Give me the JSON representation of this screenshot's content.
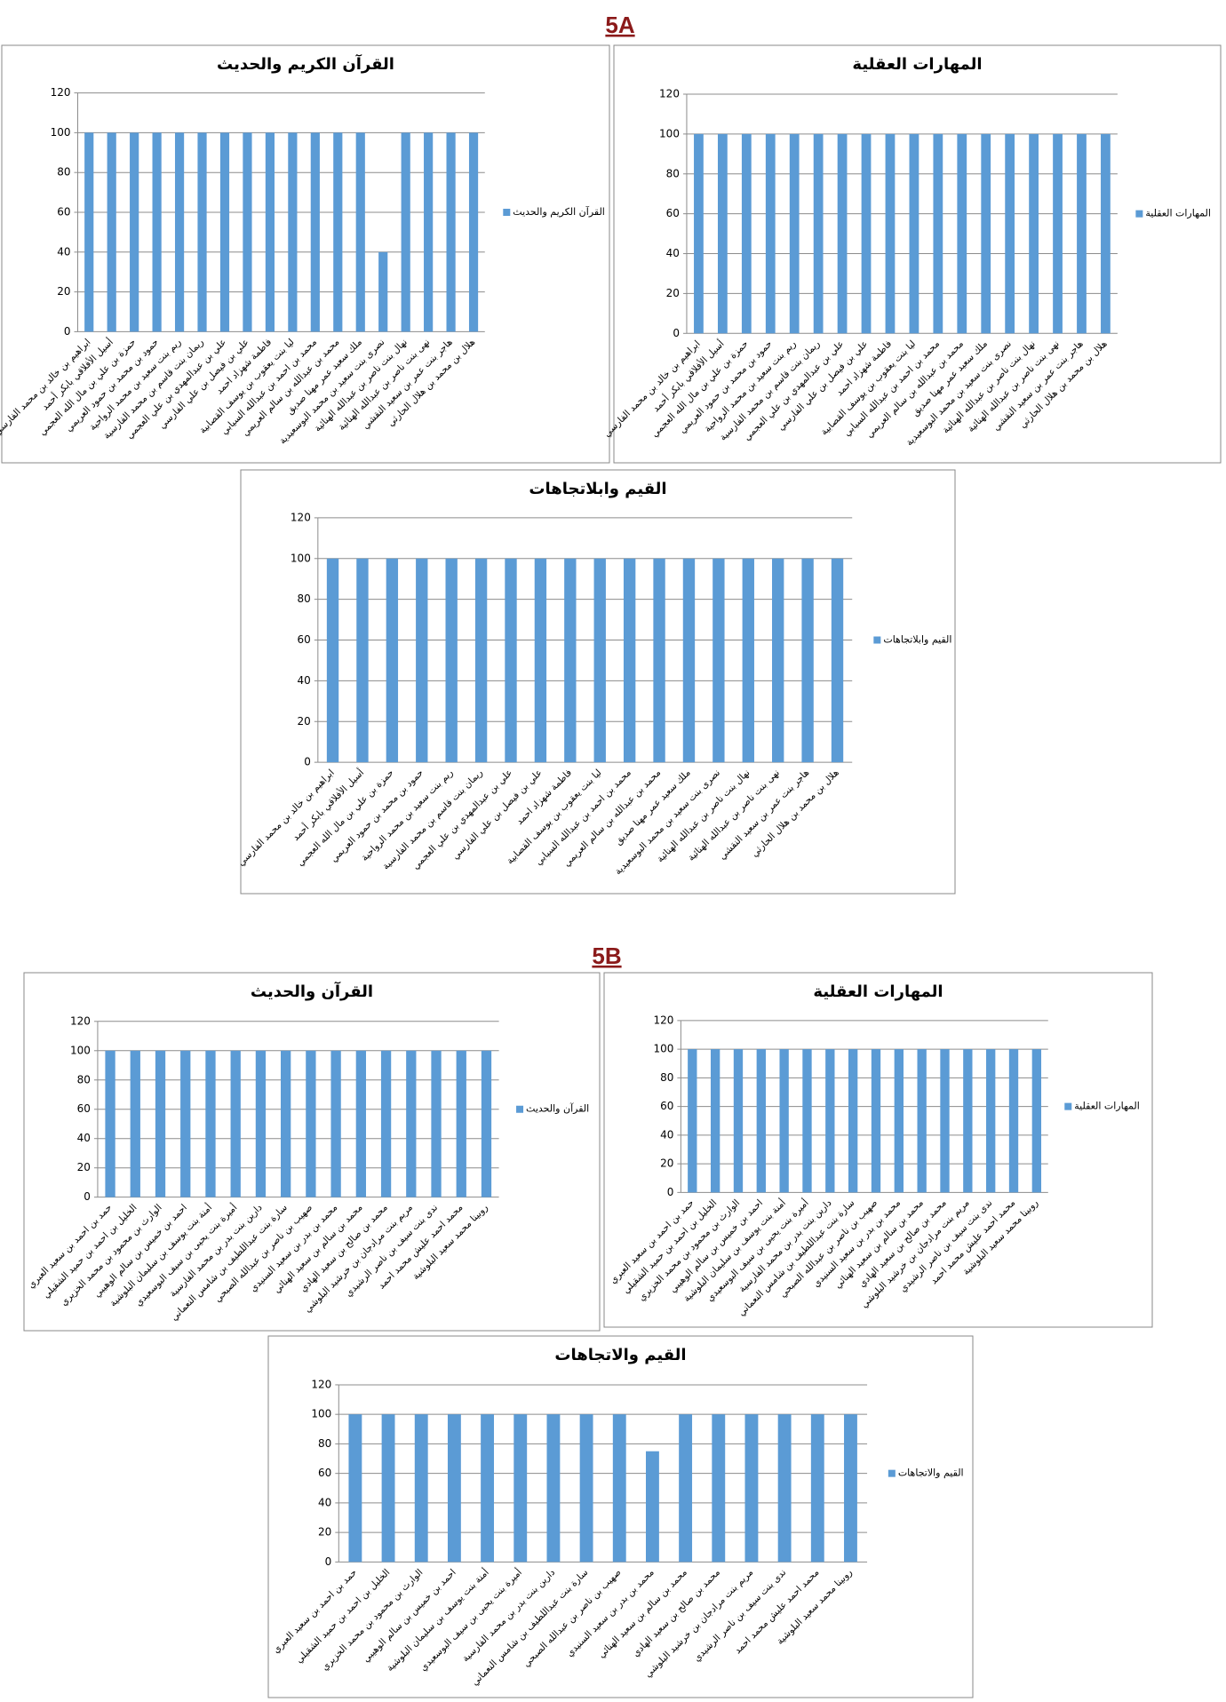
{
  "headings": [
    "5A",
    "5B"
  ],
  "chart_data": [
    {
      "type": "bar",
      "title": "القرآن الكريم والحديث",
      "categories": [
        "ابراهيم بن خالد بن محمد الفارسي",
        "أسيل الأفلاقي بابكر أحمد",
        "حمزة بن علي بن مال الله العجمي",
        "حمود بن محمد بن حمود العريمي",
        "ريم بنت سعيد بن محمد الرواحية",
        "ريمان بنت قاسم بن محمد الفارسية",
        "علي بن عبدالمهدي بن علي العجمي",
        "علي بن فيصل بن علي الفارسي",
        "فاطمة شهزاد احمد",
        "ليا بنت يعقوب بن يوسف القصابية",
        "محمد بن احمد بن عبدالله السيابي",
        "محمد بن عبدالله بن سالم العريمي",
        "ملك سعيد عمر مهنا صديق",
        "نصرى بنت سعيد بن محمد البوسعيدية",
        "نهال بنت ناصر بن عبدالله الهنائية",
        "نهى بنت ناصر بن عبدالله الهنائية",
        "هاجر بنت عمر بن سعيد النقشي",
        "هلال بن محمد بن هلال الحارثي"
      ],
      "series": [
        {
          "name": "القرآن الكريم والحديث",
          "color": "#5b9bd5",
          "values": [
            100,
            100,
            100,
            100,
            100,
            100,
            100,
            100,
            100,
            100,
            100,
            100,
            100,
            40,
            100,
            100,
            100,
            100
          ]
        }
      ],
      "ylim": [
        0,
        120
      ],
      "yticks": [
        0,
        20,
        40,
        60,
        80,
        100,
        120
      ],
      "grid": true,
      "legend": "right"
    },
    {
      "type": "bar",
      "title": "المهارات العقلية",
      "categories": [
        "ابراهيم بن خالد بن محمد الفارسي",
        "أسيل الأفلاقي بابكر أحمد",
        "حمزة بن علي بن مال الله العجمي",
        "حمود بن محمد بن حمود العريمي",
        "ريم بنت سعيد بن محمد الرواحية",
        "ريمان بنت قاسم بن محمد الفارسية",
        "علي بن عبدالمهدي بن علي العجمي",
        "علي بن فيصل بن علي الفارسي",
        "فاطمة شهزاد احمد",
        "ليا بنت يعقوب بن يوسف القصابية",
        "محمد بن احمد بن عبدالله السيابي",
        "محمد بن عبدالله بن سالم العريمي",
        "ملك سعيد عمر مهنا صديق",
        "نصرى بنت سعيد بن محمد البوسعيدية",
        "نهال بنت ناصر بن عبدالله الهنائية",
        "نهى بنت ناصر بن عبدالله الهنائية",
        "هاجر بنت عمر بن سعيد النقشي",
        "هلال بن محمد بن هلال الحارثي"
      ],
      "series": [
        {
          "name": "المهارات العقلية",
          "color": "#5b9bd5",
          "values": [
            100,
            100,
            100,
            100,
            100,
            100,
            100,
            100,
            100,
            100,
            100,
            100,
            100,
            100,
            100,
            100,
            100,
            100
          ]
        }
      ],
      "ylim": [
        0,
        120
      ],
      "yticks": [
        0,
        20,
        40,
        60,
        80,
        100,
        120
      ],
      "grid": true,
      "legend": "right"
    },
    {
      "type": "bar",
      "title": "القيم وابلاتجاهات",
      "categories": [
        "ابراهيم بن خالد بن محمد الفارسي",
        "أسيل الأفلاقي بابكر أحمد",
        "حمزة بن علي بن مال الله العجمي",
        "حمود بن محمد بن حمود العريمي",
        "ريم بنت سعيد بن محمد الرواحية",
        "ريمان بنت قاسم بن محمد الفارسية",
        "علي بن عبدالمهدي بن علي العجمي",
        "علي بن فيصل بن علي الفارسي",
        "فاطمة شهزاد احمد",
        "ليا بنت يعقوب بن يوسف القصابية",
        "محمد بن احمد بن عبدالله السيابي",
        "محمد بن عبدالله بن سالم العريمي",
        "ملك سعيد عمر مهنا صديق",
        "نصرى بنت سعيد بن محمد البوسعيدية",
        "نهال بنت ناصر بن عبدالله الهنائية",
        "نهى بنت ناصر بن عبدالله الهنائية",
        "هاجر بنت عمر بن سعيد النقشي",
        "هلال بن محمد بن هلال الحارثي"
      ],
      "series": [
        {
          "name": "القيم وابلاتجاهات",
          "color": "#5b9bd5",
          "values": [
            100,
            100,
            100,
            100,
            100,
            100,
            100,
            100,
            100,
            100,
            100,
            100,
            100,
            100,
            100,
            100,
            100,
            100
          ]
        }
      ],
      "ylim": [
        0,
        120
      ],
      "yticks": [
        0,
        20,
        40,
        60,
        80,
        100,
        120
      ],
      "grid": true,
      "legend": "right"
    },
    {
      "type": "bar",
      "title": "القرآن والحديث",
      "categories": [
        "حمد بن احمد بن سعيد العبري",
        "الخليل بن احمد بن حميد الشقيلي",
        "الوارث بن محمود بن محمد الخزيري",
        "احمد بن خميس بن سالم الوهيبي",
        "أمنة بنت يوسف بن سليمان البلوشية",
        "أميرة بنت يحيى بن سيف البوسعيدي",
        "دارين بنت بدر بن محمد الفارسية",
        "سارة بنت عبداللطيف بن شامس النعماني",
        "صهيب بن ناصر بن عبدالله الصبحي",
        "محمد بن بدر بن سعيد السنيدي",
        "محمد بن سالم بن سعيد الهنائي",
        "محمد بن صالح بن سعيد الهادي",
        "مريم بنت مرادجان بن خرشيد البلوشي",
        "ندى بنت سيف بن ناصر الرشيدي",
        "محمد احمد عليش محمد احمد",
        "روبينا محمد سعيد البلوشية"
      ],
      "series": [
        {
          "name": "القرآن والحديث",
          "color": "#5b9bd5",
          "values": [
            100,
            100,
            100,
            100,
            100,
            100,
            100,
            100,
            100,
            100,
            100,
            100,
            100,
            100,
            100,
            100
          ]
        }
      ],
      "ylim": [
        0,
        120
      ],
      "yticks": [
        0,
        20,
        40,
        60,
        80,
        100,
        120
      ],
      "grid": true,
      "legend": "right"
    },
    {
      "type": "bar",
      "title": "المهارات العقلية",
      "categories": [
        "حمد بن احمد بن سعيد العبري",
        "الخليل بن احمد بن حميد الشقيلي",
        "الوارث بن محمود بن محمد الخزيري",
        "احمد بن خميس بن سالم الوهيبي",
        "أمنة بنت يوسف بن سليمان البلوشية",
        "أميرة بنت يحيى بن سيف البوسعيدي",
        "دارين بنت بدر بن محمد الفارسية",
        "سارة بنت عبداللطيف بن شامس النعماني",
        "صهيب بن ناصر بن عبدالله الصبحي",
        "محمد بن بدر بن سعيد السنيدي",
        "محمد بن سالم بن سعيد الهنائي",
        "محمد بن صالح بن سعيد الهادي",
        "مريم بنت مرادجان بن خرشيد البلوشي",
        "ندى بنت سيف بن ناصر الرشيدي",
        "محمد احمد عليش محمد احمد",
        "روبينا محمد سعيد البلوشية"
      ],
      "series": [
        {
          "name": "المهارات العقلية",
          "color": "#5b9bd5",
          "values": [
            100,
            100,
            100,
            100,
            100,
            100,
            100,
            100,
            100,
            100,
            100,
            100,
            100,
            100,
            100,
            100
          ]
        }
      ],
      "ylim": [
        0,
        120
      ],
      "yticks": [
        0,
        20,
        40,
        60,
        80,
        100,
        120
      ],
      "grid": true,
      "legend": "right"
    },
    {
      "type": "bar",
      "title": "القيم والاتجاهات",
      "categories": [
        "حمد بن احمد بن سعيد العبري",
        "الخليل بن احمد بن حميد الشقيلي",
        "الوارث بن محمود بن محمد الخزيري",
        "احمد بن خميس بن سالم الوهيبي",
        "أمنة بنت يوسف بن سليمان البلوشية",
        "أميرة بنت يحيى بن سيف البوسعيدي",
        "دارين بنت بدر بن محمد الفارسية",
        "سارة بنت عبداللطيف بن شامس النعماني",
        "صهيب بن ناصر بن عبدالله الصبحي",
        "محمد بن بدر بن سعيد السنيدي",
        "محمد بن سالم بن سعيد الهنائي",
        "محمد بن صالح بن سعيد الهادي",
        "مريم بنت مرادجان بن خرشيد البلوشي",
        "ندى بنت سيف بن ناصر الرشيدي",
        "محمد احمد عليش محمد احمد",
        "روبينا محمد سعيد البلوشية"
      ],
      "series": [
        {
          "name": "القيم والاتجاهات",
          "color": "#5b9bd5",
          "values": [
            100,
            100,
            100,
            100,
            100,
            100,
            100,
            100,
            100,
            75,
            100,
            100,
            100,
            100,
            100,
            100
          ]
        }
      ],
      "ylim": [
        0,
        120
      ],
      "yticks": [
        0,
        20,
        40,
        60,
        80,
        100,
        120
      ],
      "grid": true,
      "legend": "right"
    }
  ]
}
